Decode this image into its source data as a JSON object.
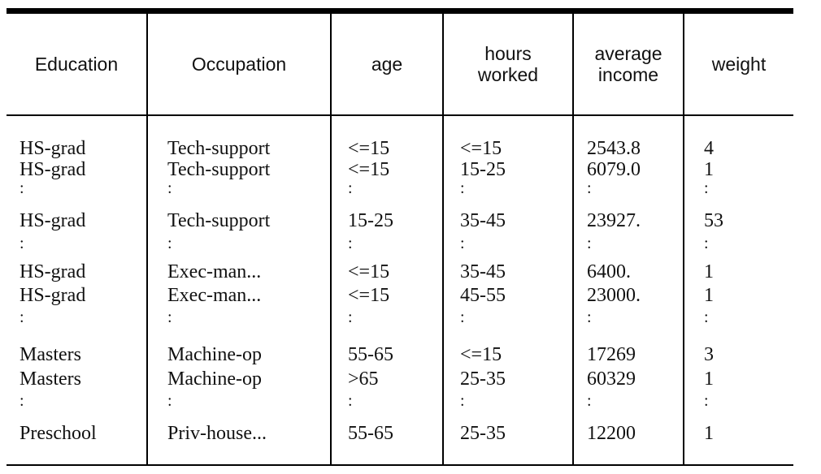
{
  "headers": [
    "Education",
    "Occupation",
    "age",
    "hours\nworked",
    "average\nincome",
    "weight"
  ],
  "rows": [
    {
      "type": "data",
      "cells": [
        "HS-grad",
        "Tech-support",
        "<=15",
        "<=15",
        "2543.8",
        "4"
      ]
    },
    {
      "type": "data",
      "cells": [
        "HS-grad",
        "Tech-support",
        "<=15",
        "15-25",
        "6079.0",
        "1"
      ]
    },
    {
      "type": "ellipsis",
      "cells": [
        ":",
        ":",
        ":",
        ":",
        ":",
        ":"
      ]
    },
    {
      "type": "data",
      "cells": [
        "HS-grad",
        "Tech-support",
        "15-25",
        "35-45",
        "23927.",
        "53"
      ]
    },
    {
      "type": "ellipsis",
      "cells": [
        ":",
        ":",
        ":",
        ":",
        ":",
        ":"
      ]
    },
    {
      "type": "data",
      "cells": [
        "HS-grad",
        "Exec-man...",
        "<=15",
        "35-45",
        "6400.",
        "1"
      ]
    },
    {
      "type": "data",
      "cells": [
        "HS-grad",
        "Exec-man...",
        "<=15",
        "45-55",
        "23000.",
        "1"
      ]
    },
    {
      "type": "ellipsis",
      "cells": [
        ":",
        ":",
        ":",
        ":",
        ":",
        ":"
      ]
    },
    {
      "type": "data",
      "cells": [
        "Masters",
        "Machine-op",
        "55-65",
        "<=15",
        "17269",
        "3"
      ]
    },
    {
      "type": "data",
      "cells": [
        "Masters",
        "Machine-op",
        ">65",
        "25-35",
        "60329",
        "1"
      ]
    },
    {
      "type": "ellipsis",
      "cells": [
        ":",
        ":",
        ":",
        ":",
        ":",
        ":"
      ]
    },
    {
      "type": "data",
      "cells": [
        "Preschool",
        "Priv-house...",
        "55-65",
        "25-35",
        "12200",
        "1"
      ]
    }
  ]
}
